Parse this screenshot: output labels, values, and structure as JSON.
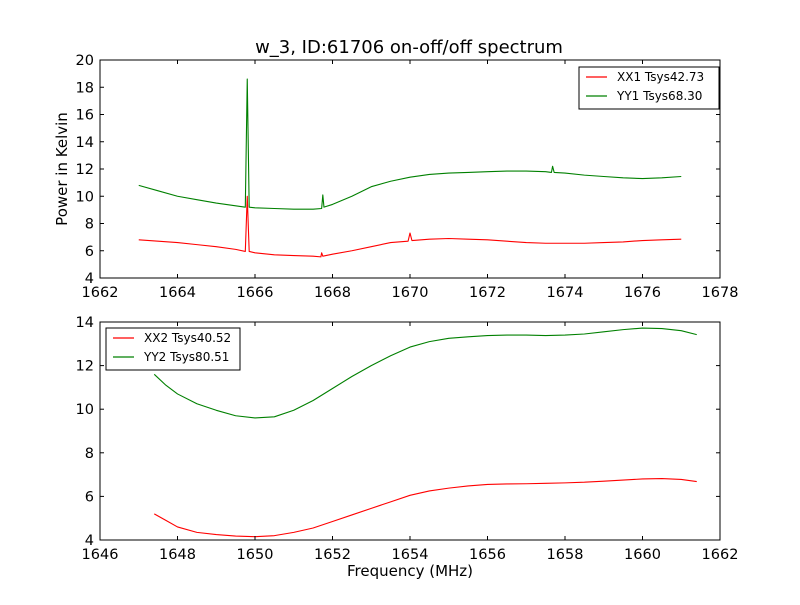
{
  "title": "w_3, ID:61706 on-off/off spectrum",
  "colors": {
    "red": "#ff0000",
    "green": "#008000"
  },
  "chart_data": [
    {
      "type": "line",
      "title": "w_3, ID:61706 on-off/off spectrum",
      "xlabel": "",
      "ylabel": "Power in Kelvin",
      "xlim": [
        1662,
        1678
      ],
      "ylim": [
        4,
        20
      ],
      "xticks": [
        "1662",
        "1664",
        "1666",
        "1668",
        "1670",
        "1672",
        "1674",
        "1676",
        "1678"
      ],
      "yticks": [
        "4",
        "6",
        "8",
        "10",
        "12",
        "14",
        "16",
        "18",
        "20"
      ],
      "grid": false,
      "legend_position": "top-right",
      "series": [
        {
          "name": "XX1 Tsys42.73",
          "color": "#ff0000",
          "x": [
            1663.0,
            1663.5,
            1664.0,
            1664.5,
            1665.0,
            1665.5,
            1665.75,
            1665.8,
            1665.85,
            1666.0,
            1666.5,
            1667.0,
            1667.5,
            1667.7,
            1667.72,
            1667.75,
            1668.0,
            1668.5,
            1669.0,
            1669.5,
            1669.95,
            1670.0,
            1670.05,
            1670.5,
            1671.0,
            1671.5,
            1672.0,
            1672.5,
            1673.0,
            1673.5,
            1674.0,
            1674.5,
            1675.0,
            1675.5,
            1676.0,
            1676.5,
            1677.0
          ],
          "y": [
            6.8,
            6.7,
            6.6,
            6.45,
            6.3,
            6.1,
            5.95,
            10.0,
            5.95,
            5.85,
            5.7,
            5.65,
            5.6,
            5.55,
            5.85,
            5.6,
            5.75,
            6.0,
            6.3,
            6.6,
            6.7,
            7.3,
            6.75,
            6.85,
            6.9,
            6.85,
            6.8,
            6.7,
            6.6,
            6.55,
            6.55,
            6.55,
            6.6,
            6.65,
            6.75,
            6.8,
            6.85
          ]
        },
        {
          "name": "YY1 Tsys68.30",
          "color": "#008000",
          "x": [
            1663.0,
            1663.5,
            1664.0,
            1664.5,
            1665.0,
            1665.5,
            1665.75,
            1665.8,
            1665.85,
            1666.0,
            1666.5,
            1667.0,
            1667.5,
            1667.72,
            1667.75,
            1667.78,
            1668.0,
            1668.5,
            1669.0,
            1669.5,
            1670.0,
            1670.5,
            1671.0,
            1671.5,
            1672.0,
            1672.5,
            1673.0,
            1673.5,
            1673.65,
            1673.68,
            1673.72,
            1674.0,
            1674.5,
            1675.0,
            1675.5,
            1676.0,
            1676.5,
            1677.0
          ],
          "y": [
            10.8,
            10.4,
            10.0,
            9.75,
            9.5,
            9.3,
            9.2,
            18.6,
            9.2,
            9.15,
            9.1,
            9.05,
            9.05,
            9.1,
            10.1,
            9.2,
            9.4,
            10.0,
            10.7,
            11.1,
            11.4,
            11.6,
            11.7,
            11.75,
            11.8,
            11.85,
            11.85,
            11.8,
            11.75,
            12.2,
            11.75,
            11.7,
            11.55,
            11.45,
            11.35,
            11.3,
            11.35,
            11.45
          ]
        }
      ]
    },
    {
      "type": "line",
      "title": "",
      "xlabel": "Frequency (MHz)",
      "ylabel": "",
      "xlim": [
        1646,
        1662
      ],
      "ylim": [
        4,
        14
      ],
      "xticks": [
        "1646",
        "1648",
        "1650",
        "1652",
        "1654",
        "1656",
        "1658",
        "1660",
        "1662"
      ],
      "yticks": [
        "4",
        "6",
        "8",
        "10",
        "12",
        "14"
      ],
      "grid": false,
      "legend_position": "top-left",
      "series": [
        {
          "name": "XX2 Tsys40.52",
          "color": "#ff0000",
          "x": [
            1647.4,
            1647.7,
            1648.0,
            1648.5,
            1649.0,
            1649.5,
            1650.0,
            1650.5,
            1651.0,
            1651.5,
            1652.0,
            1652.5,
            1653.0,
            1653.5,
            1654.0,
            1654.5,
            1655.0,
            1655.5,
            1656.0,
            1656.5,
            1657.0,
            1657.5,
            1658.0,
            1658.5,
            1659.0,
            1659.5,
            1660.0,
            1660.5,
            1661.0,
            1661.4
          ],
          "y": [
            5.2,
            4.9,
            4.6,
            4.35,
            4.25,
            4.18,
            4.15,
            4.2,
            4.35,
            4.55,
            4.85,
            5.15,
            5.45,
            5.75,
            6.05,
            6.25,
            6.38,
            6.48,
            6.55,
            6.57,
            6.58,
            6.6,
            6.62,
            6.65,
            6.7,
            6.75,
            6.8,
            6.82,
            6.78,
            6.68
          ]
        },
        {
          "name": "YY2 Tsys80.51",
          "color": "#008000",
          "x": [
            1647.4,
            1647.7,
            1648.0,
            1648.5,
            1649.0,
            1649.5,
            1650.0,
            1650.5,
            1651.0,
            1651.5,
            1652.0,
            1652.5,
            1653.0,
            1653.5,
            1654.0,
            1654.5,
            1655.0,
            1655.5,
            1656.0,
            1656.5,
            1657.0,
            1657.5,
            1658.0,
            1658.5,
            1659.0,
            1659.5,
            1660.0,
            1660.5,
            1661.0,
            1661.4
          ],
          "y": [
            11.6,
            11.1,
            10.7,
            10.25,
            9.95,
            9.7,
            9.6,
            9.65,
            9.95,
            10.4,
            10.95,
            11.5,
            12.0,
            12.45,
            12.85,
            13.1,
            13.25,
            13.32,
            13.38,
            13.4,
            13.4,
            13.38,
            13.4,
            13.45,
            13.55,
            13.65,
            13.72,
            13.7,
            13.6,
            13.42
          ]
        }
      ]
    }
  ]
}
